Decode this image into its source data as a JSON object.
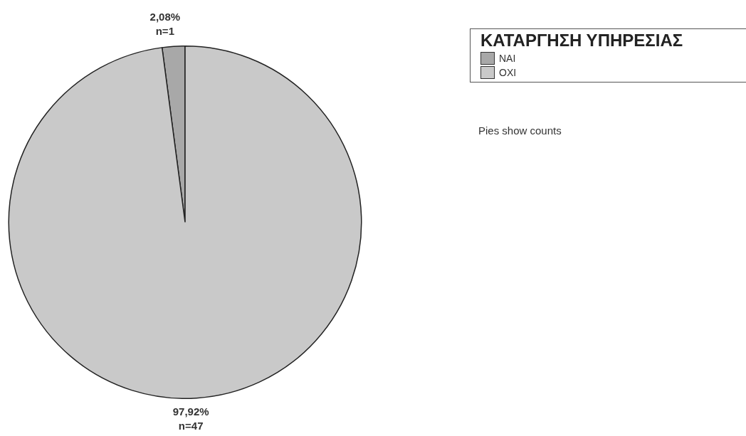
{
  "chart_data": {
    "type": "pie",
    "categories": [
      "ΝΑΙ",
      "ΟΧΙ"
    ],
    "values": [
      1,
      47
    ],
    "colors": [
      "#a8a8a8",
      "#c9c9c9"
    ],
    "value_labels": [
      "2,08%\nn=1",
      "97,92%\nn=47"
    ],
    "legend_title": "ΚΑΤΑΡΓΗΣΗ ΥΠΗΡΕΣΙΑΣ",
    "legend": "top right",
    "annotations": [
      "Pies show counts"
    ]
  }
}
